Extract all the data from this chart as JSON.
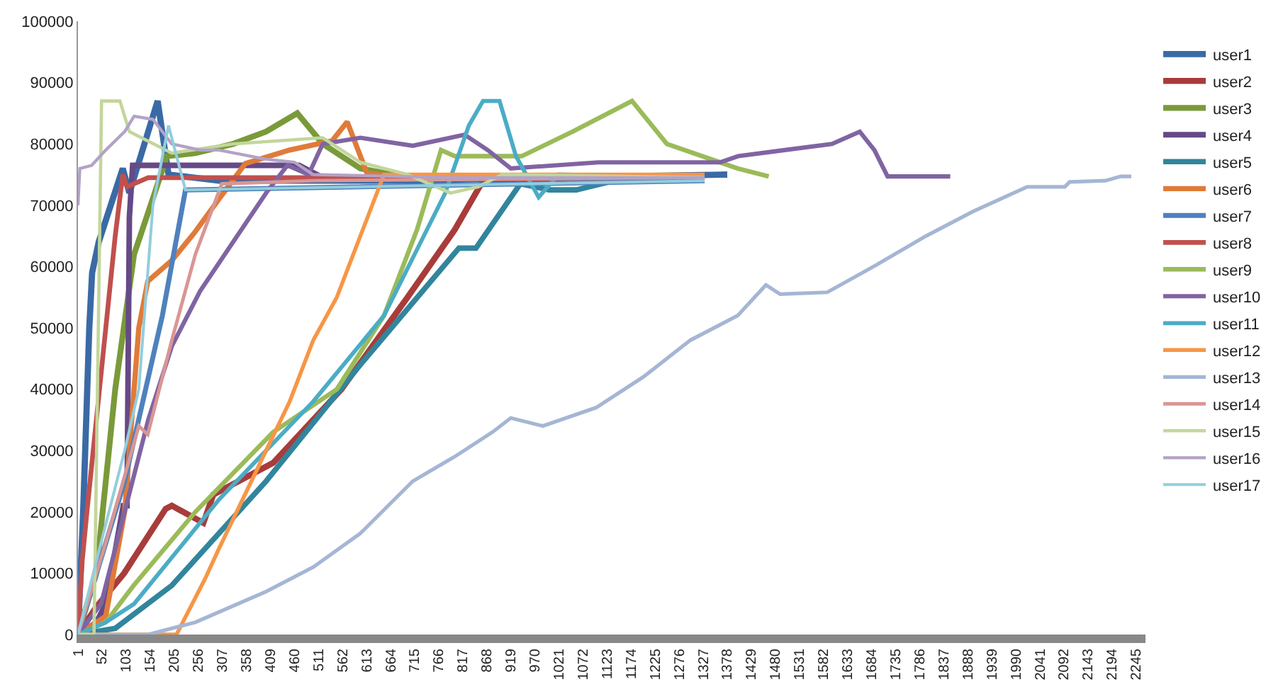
{
  "chart_data": {
    "type": "line",
    "ylim": [
      0,
      100000
    ],
    "yticks": [
      0,
      10000,
      20000,
      30000,
      40000,
      50000,
      60000,
      70000,
      80000,
      90000,
      100000
    ],
    "xlim": [
      1,
      2265
    ],
    "xticks": [
      1,
      52,
      103,
      154,
      205,
      256,
      307,
      358,
      409,
      460,
      511,
      562,
      613,
      664,
      715,
      766,
      817,
      868,
      919,
      970,
      1021,
      1072,
      1123,
      1174,
      1225,
      1276,
      1327,
      1378,
      1429,
      1480,
      1531,
      1582,
      1633,
      1684,
      1735,
      1786,
      1837,
      1888,
      1939,
      1990,
      2041,
      2092,
      2143,
      2194,
      2245
    ],
    "legend": "right",
    "marker": "none",
    "line_style": "solid",
    "series": [
      {
        "name": "user1",
        "color": "#3a6aa6",
        "x": [
          1,
          12,
          25,
          31,
          45,
          96,
          110,
          170,
          193,
          300,
          700,
          1000,
          1378
        ],
        "values": [
          0,
          20000,
          50000,
          59000,
          64000,
          76000,
          72000,
          87000,
          75000,
          74000,
          74000,
          74500,
          75000
        ]
      },
      {
        "name": "user2",
        "color": "#a83c3a",
        "x": [
          1,
          40,
          99,
          187,
          200,
          267,
          288,
          415,
          560,
          700,
          800,
          860,
          1300
        ],
        "values": [
          0,
          4500,
          10000,
          20500,
          21000,
          18200,
          22800,
          28000,
          40000,
          55000,
          66000,
          74000,
          74500
        ]
      },
      {
        "name": "user3",
        "color": "#7a9a3a",
        "x": [
          1,
          40,
          80,
          120,
          190,
          250,
          330,
          400,
          466,
          520,
          600,
          700,
          1330
        ],
        "values": [
          0,
          10000,
          40000,
          62000,
          78000,
          78500,
          80000,
          82000,
          85000,
          80000,
          76000,
          74500,
          74500
        ]
      },
      {
        "name": "user4",
        "color": "#654a86",
        "x": [
          1,
          40,
          60,
          97,
          105,
          110,
          117,
          170,
          470,
          520,
          1330
        ],
        "values": [
          0,
          2000,
          5000,
          21000,
          21000,
          68000,
          76500,
          76500,
          76500,
          74500,
          74500
        ]
      },
      {
        "name": "user5",
        "color": "#31859c",
        "x": [
          1,
          80,
          200,
          400,
          600,
          809,
          845,
          939,
          1000,
          1058,
          1165,
          1330
        ],
        "values": [
          0,
          1000,
          8000,
          25000,
          44000,
          63000,
          63000,
          73500,
          72500,
          72500,
          74500,
          74500
        ]
      },
      {
        "name": "user6",
        "color": "#e07b39",
        "x": [
          1,
          60,
          100,
          130,
          149,
          200,
          247,
          300,
          356,
          450,
          540,
          572,
          614,
          700,
          830
        ],
        "values": [
          0,
          3000,
          20000,
          50000,
          57600,
          61000,
          65400,
          71000,
          76800,
          79000,
          80500,
          83600,
          75200,
          74500,
          74500
        ]
      },
      {
        "name": "user7",
        "color": "#4f81bd",
        "x": [
          1,
          100,
          180,
          229,
          1330
        ],
        "values": [
          0,
          25000,
          52000,
          72500,
          74000
        ]
      },
      {
        "name": "user8",
        "color": "#c0504d",
        "x": [
          1,
          10,
          20,
          40,
          60,
          80,
          96,
          105,
          150,
          1330
        ],
        "values": [
          0,
          12000,
          20000,
          35000,
          50000,
          65000,
          75000,
          73000,
          74500,
          74500
        ]
      },
      {
        "name": "user9",
        "color": "#9bbb59",
        "x": [
          1,
          60,
          119,
          250,
          415,
          550,
          650,
          720,
          771,
          800,
          942,
          1050,
          1176,
          1250,
          1400,
          1466
        ],
        "values": [
          0,
          2000,
          8000,
          20000,
          33000,
          40000,
          52000,
          66000,
          79000,
          78000,
          78000,
          82000,
          87000,
          80000,
          76000,
          74700
        ]
      },
      {
        "name": "user10",
        "color": "#8064a2",
        "x": [
          1,
          50,
          100,
          150,
          200,
          260,
          330,
          400,
          445,
          490,
          520,
          600,
          711,
          821,
          870,
          919,
          1105,
          1363,
          1401,
          1500,
          1600,
          1659,
          1690,
          1718,
          1851
        ],
        "values": [
          0,
          5000,
          20000,
          35000,
          47000,
          56000,
          64000,
          72000,
          76500,
          75000,
          80000,
          81000,
          79700,
          81500,
          79000,
          76000,
          77000,
          77000,
          78000,
          79000,
          80000,
          82000,
          79000,
          74700,
          74700
        ]
      },
      {
        "name": "user11",
        "color": "#4bacc6",
        "x": [
          1,
          60,
          120,
          300,
          500,
          650,
          780,
          830,
          860,
          895,
          930,
          978,
          1020,
          1330
        ],
        "values": [
          0,
          2000,
          5000,
          22000,
          38000,
          52000,
          72000,
          83000,
          87000,
          87000,
          78000,
          71300,
          75000,
          74500
        ]
      },
      {
        "name": "user12",
        "color": "#f79646",
        "x": [
          1,
          210,
          230,
          270,
          300,
          350,
          400,
          450,
          500,
          550,
          600,
          650,
          1330
        ],
        "values": [
          0,
          0,
          3000,
          9000,
          14000,
          22000,
          30000,
          38000,
          48000,
          55000,
          65000,
          75000,
          75000
        ]
      },
      {
        "name": "user13",
        "color": "#a5b6d4",
        "x": [
          1,
          150,
          250,
          400,
          500,
          600,
          711,
          800,
          880,
          919,
          987,
          1100,
          1200,
          1300,
          1400,
          1460,
          1490,
          1590,
          1688,
          1800,
          1900,
          2014,
          2094,
          2104,
          2180,
          2212,
          2235
        ],
        "values": [
          0,
          0,
          2000,
          7000,
          11000,
          16500,
          25000,
          29000,
          33000,
          35300,
          34000,
          37000,
          42000,
          48000,
          52000,
          57000,
          55500,
          55800,
          60000,
          65000,
          69000,
          73000,
          73000,
          73800,
          74000,
          74700,
          74700
        ]
      },
      {
        "name": "user14",
        "color": "#d99694",
        "x": [
          1,
          60,
          130,
          149,
          200,
          250,
          306,
          500,
          1330
        ],
        "values": [
          0,
          15000,
          34000,
          32600,
          48000,
          62000,
          73500,
          74000,
          74500
        ]
      },
      {
        "name": "user15",
        "color": "#c3d69b",
        "x": [
          1,
          35,
          51,
          90,
          110,
          200,
          330,
          520,
          600,
          700,
          791,
          850,
          900,
          1330
        ],
        "values": [
          0,
          0,
          87000,
          87000,
          82000,
          78500,
          80000,
          81000,
          77000,
          75000,
          72000,
          73000,
          75000,
          74500
        ]
      },
      {
        "name": "user16",
        "color": "#b3a2c7",
        "x": [
          1,
          5,
          30,
          60,
          100,
          120,
          160,
          200,
          260,
          300,
          400,
          460,
          500,
          800,
          1330
        ],
        "values": [
          70000,
          76000,
          76500,
          79000,
          82000,
          84500,
          84000,
          80000,
          79000,
          79000,
          77500,
          77000,
          75000,
          74500,
          74500
        ]
      },
      {
        "name": "user17",
        "color": "#93cddd",
        "x": [
          1,
          50,
          100,
          130,
          160,
          193,
          229,
          1330
        ],
        "values": [
          0,
          15000,
          30000,
          40000,
          70000,
          83000,
          72500,
          74000
        ]
      }
    ]
  }
}
